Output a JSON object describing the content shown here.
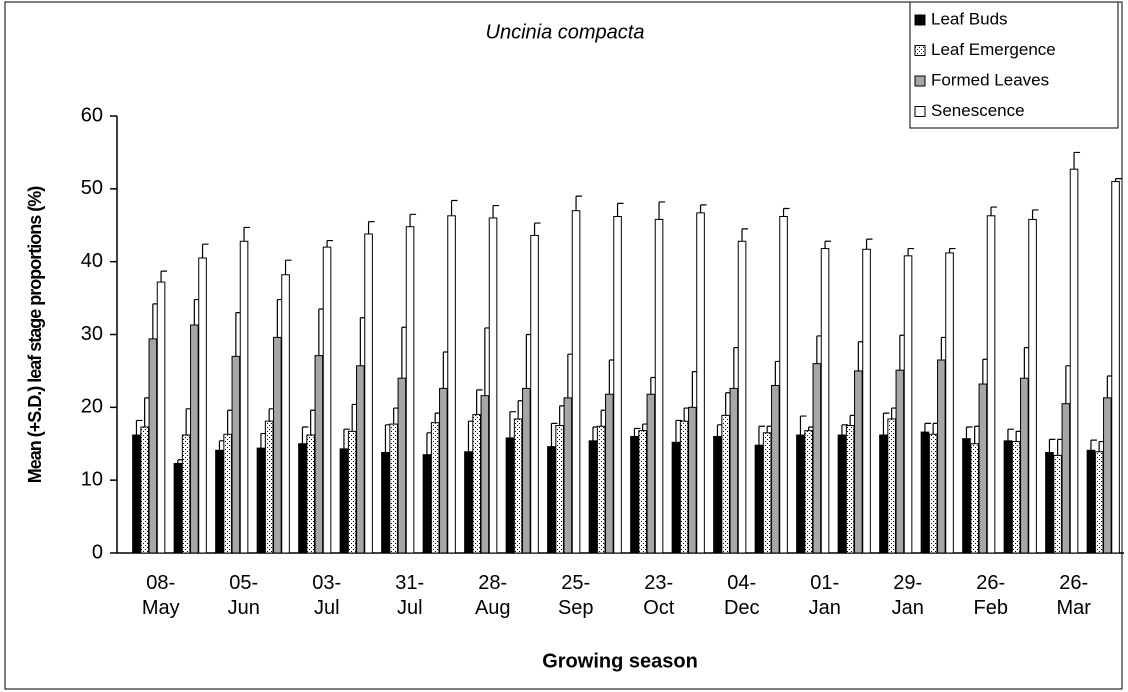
{
  "chart_data": {
    "type": "bar",
    "title": "Uncinia compacta",
    "y_label": "Mean (+S.D.) leaf stage proportions (%)",
    "x_label": "Growing season",
    "categories": [
      "08-May",
      null,
      "05-Jun",
      null,
      "03-Jul",
      null,
      "31-Jul",
      null,
      "28-Aug",
      null,
      "25-Sep",
      null,
      "23-Oct",
      null,
      "04-Dec",
      null,
      "01-Jan",
      null,
      "29-Jan",
      null,
      "26-Feb",
      null,
      "26-Mar",
      null
    ],
    "ylim": [
      0,
      60
    ],
    "yticks": [
      0,
      10,
      20,
      30,
      40,
      50,
      60
    ],
    "grid": false,
    "legend": "top-right",
    "series": [
      {
        "name": "Leaf Buds",
        "color": "#000000",
        "pattern": "solid",
        "values": [
          16.2,
          12.3,
          14.1,
          14.4,
          15,
          14.3,
          13.8,
          13.5,
          13.9,
          15.8,
          14.6,
          15.4,
          16,
          15.2,
          16,
          14.8,
          16.2,
          16.2,
          16.2,
          16.6,
          15.7,
          15.4,
          13.8,
          14.1
        ],
        "errors": [
          2,
          0.5,
          1.3,
          2,
          2.3,
          2.7,
          3.8,
          3,
          4.2,
          3.6,
          3.2,
          1.9,
          1.1,
          3,
          1.6,
          2.6,
          2.6,
          1.4,
          3,
          1.2,
          1.6,
          1.6,
          1.8,
          1.4
        ]
      },
      {
        "name": "Leaf Emergence",
        "color": "#ffffff",
        "pattern": "dots",
        "values": [
          17.3,
          16.2,
          16.3,
          18.1,
          16.2,
          16.7,
          17.7,
          17.9,
          19,
          18.4,
          17.5,
          17.4,
          16.8,
          18.1,
          18.9,
          16.5,
          16.8,
          17.5,
          18.4,
          16.3,
          15,
          15.3,
          13.4,
          13.9
        ],
        "errors": [
          4,
          3.6,
          3.3,
          1.7,
          3.4,
          3.7,
          2.2,
          1.3,
          3.4,
          2.5,
          2.7,
          2.2,
          0.9,
          1.8,
          3.1,
          0.9,
          0.5,
          1.4,
          1.5,
          1.5,
          2.4,
          1.4,
          2.2,
          1.4
        ]
      },
      {
        "name": "Formed Leaves",
        "color": "#a6a6a6",
        "pattern": "solid",
        "values": [
          29.4,
          31.3,
          27,
          29.6,
          27.1,
          25.7,
          24,
          22.6,
          21.6,
          22.6,
          21.3,
          21.8,
          21.8,
          20,
          22.6,
          23,
          26,
          25,
          25.1,
          26.5,
          23.2,
          24,
          20.5,
          21.3
        ],
        "errors": [
          4.8,
          3.5,
          6,
          5.2,
          6.4,
          6.6,
          7,
          5,
          9.3,
          7.4,
          6,
          4.7,
          2.3,
          4.9,
          5.6,
          3.3,
          3.8,
          4,
          4.8,
          3.1,
          3.4,
          4.2,
          5.2,
          3
        ]
      },
      {
        "name": "Senescence",
        "color": "#ffffff",
        "pattern": "solid",
        "values": [
          37.2,
          40.5,
          42.8,
          38.2,
          42,
          43.8,
          44.8,
          46.3,
          46,
          43.6,
          47,
          46.2,
          45.8,
          46.7,
          42.8,
          46.2,
          41.8,
          41.7,
          40.8,
          41.2,
          46.3,
          45.8,
          52.7,
          51
        ],
        "errors": [
          1.5,
          1.9,
          1.9,
          2,
          0.9,
          1.7,
          1.7,
          2.1,
          1.7,
          1.7,
          2,
          1.8,
          2.4,
          1.1,
          1.7,
          1.1,
          1,
          1.4,
          1,
          0.6,
          1.2,
          1.3,
          2.3,
          0.4
        ]
      }
    ]
  }
}
